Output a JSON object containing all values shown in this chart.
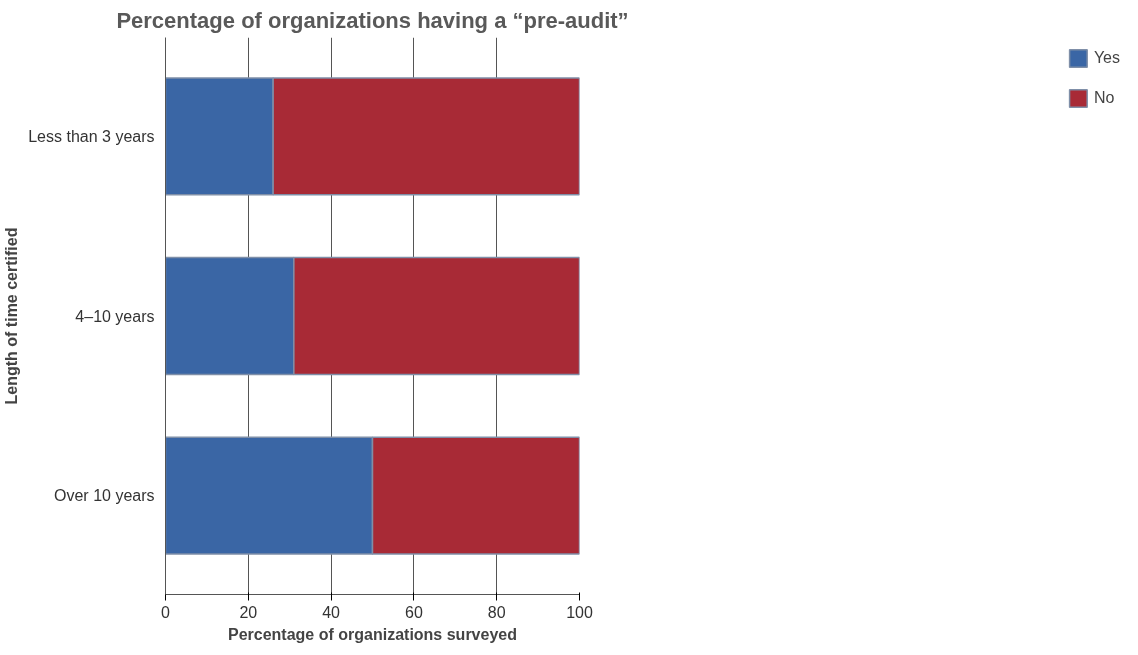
{
  "chart_data": {
    "type": "bar",
    "orientation": "horizontal",
    "stacked": true,
    "title": "Percentage of organizations having a “pre-audit”",
    "xlabel": "Percentage of organizations surveyed",
    "ylabel": "Length of time certified",
    "categories": [
      "Less than 3 years",
      "4–10 years",
      "Over 10 years"
    ],
    "series": [
      {
        "name": "Yes",
        "color": "#3a66a5",
        "values": [
          26,
          31,
          50
        ]
      },
      {
        "name": "No",
        "color": "#a82a36",
        "values": [
          74,
          69,
          50
        ]
      }
    ],
    "xlim": [
      0,
      100
    ],
    "xticks": [
      0,
      20,
      40,
      60,
      80,
      100
    ],
    "grid": "x",
    "legend": "right"
  }
}
